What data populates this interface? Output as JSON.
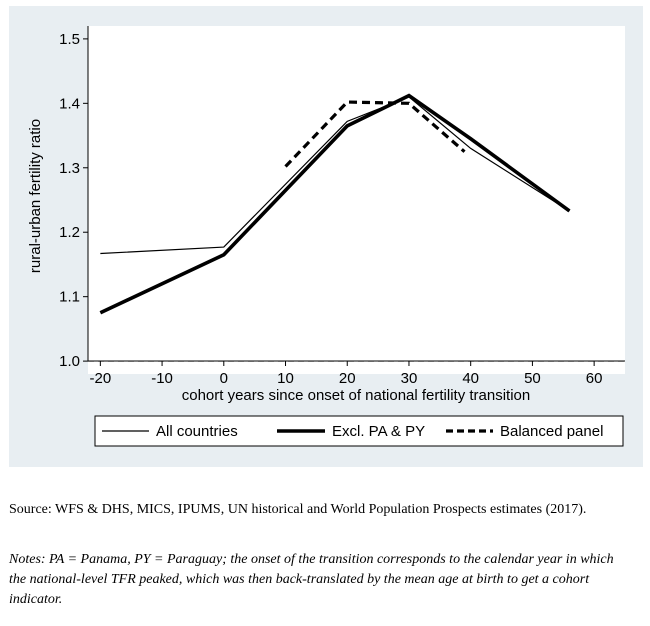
{
  "chart_data": {
    "type": "line",
    "title": "",
    "xlabel": "cohort years since onset of national fertility transition",
    "ylabel": "rural-urban fertility ratio",
    "xlim": [
      -22,
      65
    ],
    "ylim": [
      0.98,
      1.52
    ],
    "xticks": [
      -20,
      -10,
      0,
      10,
      20,
      30,
      40,
      50,
      60
    ],
    "yticks": [
      1.0,
      1.1,
      1.2,
      1.3,
      1.4,
      1.5
    ],
    "ytick_labels": [
      "1.0",
      "1.1",
      "1.2",
      "1.3",
      "1.4",
      "1.5"
    ],
    "reference_line": {
      "y": 1.0,
      "style": "dashed",
      "color": "#999999"
    },
    "grid": false,
    "legend_position": "bottom",
    "series": [
      {
        "name": "All countries",
        "style": "thin-solid",
        "x": [
          -20,
          0,
          20,
          30,
          40,
          56
        ],
        "y": [
          1.167,
          1.177,
          1.372,
          1.41,
          1.33,
          1.233
        ]
      },
      {
        "name": "Excl. PA & PY",
        "style": "thick-solid",
        "x": [
          -20,
          0,
          20,
          30,
          40,
          56
        ],
        "y": [
          1.075,
          1.165,
          1.365,
          1.412,
          1.345,
          1.233
        ]
      },
      {
        "name": "Balanced panel",
        "style": "thick-dashed",
        "x": [
          10,
          20,
          30,
          39
        ],
        "y": [
          1.302,
          1.402,
          1.4,
          1.325
        ]
      }
    ],
    "colors": {
      "background": "#e8eef2",
      "plot_bg": "#ffffff",
      "line": "#000000"
    }
  },
  "source": "Source: WFS & DHS, MICS, IPUMS, UN historical and World Population Prospects estimates (2017).",
  "notes": "Notes: PA = Panama, PY = Paraguay; the onset of the transition corresponds to the calendar year in which the national-level TFR peaked, which was then back-translated by the mean age at birth to get a cohort indicator."
}
